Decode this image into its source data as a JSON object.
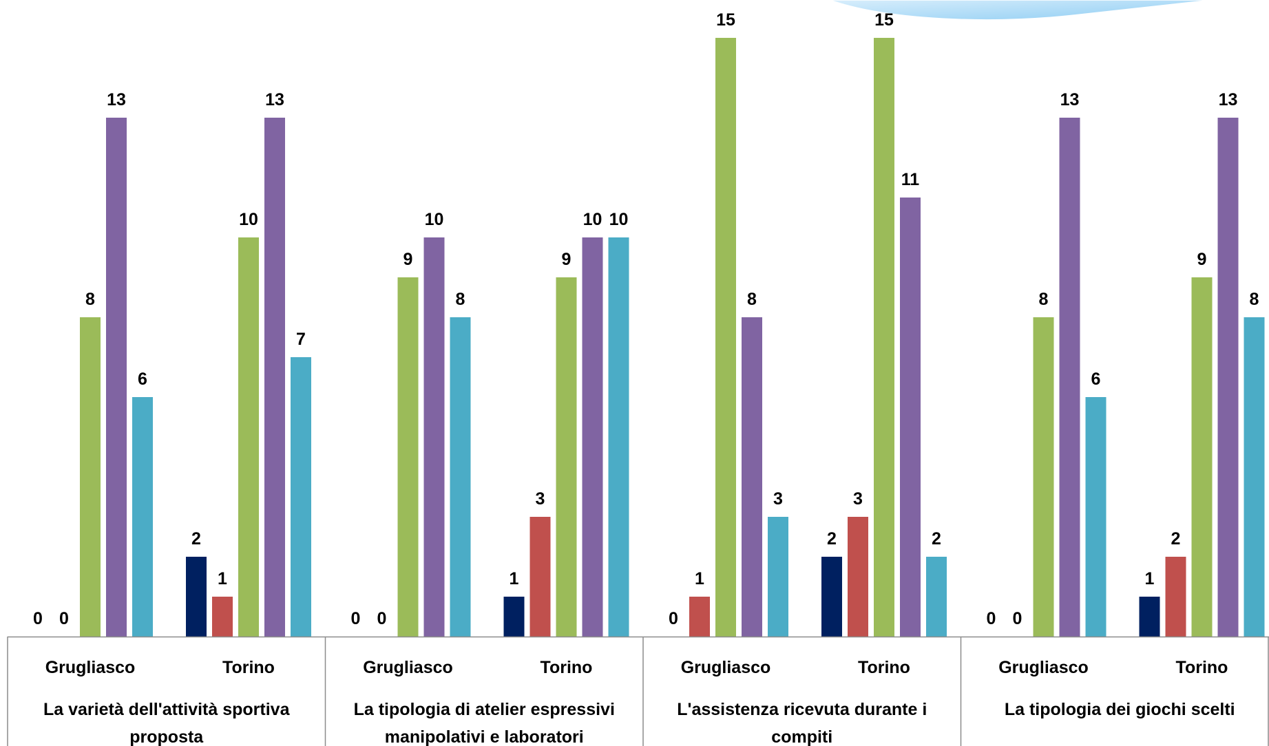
{
  "chart_data": {
    "type": "bar",
    "groups": [
      {
        "label": "La varietà dell'attività sportiva proposta",
        "label_lines": [
          "La varietà dell'attività sportiva",
          "proposta"
        ],
        "subgroups": [
          {
            "label": "Grugliasco",
            "values": [
              0,
              0,
              8,
              13,
              6
            ]
          },
          {
            "label": "Torino",
            "values": [
              2,
              1,
              10,
              13,
              7
            ]
          }
        ]
      },
      {
        "label": "La tipologia di atelier espressivi manipolativi e laboratori",
        "label_lines": [
          "La tipologia di atelier espressivi",
          "manipolativi e laboratori"
        ],
        "subgroups": [
          {
            "label": "Grugliasco",
            "values": [
              0,
              0,
              9,
              10,
              8
            ]
          },
          {
            "label": "Torino",
            "values": [
              1,
              3,
              9,
              10,
              10
            ]
          }
        ]
      },
      {
        "label": "L'assistenza ricevuta durante i compiti",
        "label_lines": [
          "L'assistenza ricevuta durante i",
          "compiti"
        ],
        "subgroups": [
          {
            "label": "Grugliasco",
            "values": [
              null,
              1,
              15,
              8,
              3
            ],
            "zero_label": "0"
          },
          {
            "label": "Torino",
            "values": [
              2,
              3,
              15,
              11,
              2
            ]
          }
        ]
      },
      {
        "label": "La tipologia dei giochi scelti",
        "label_lines": [
          "La tipologia dei giochi scelti"
        ],
        "subgroups": [
          {
            "label": "Grugliasco",
            "values": [
              0,
              0,
              8,
              13,
              6
            ]
          },
          {
            "label": "Torino",
            "values": [
              1,
              2,
              9,
              13,
              8
            ]
          }
        ]
      }
    ],
    "series_colors": [
      "#002060",
      "#C0504D",
      "#9BBB59",
      "#8064A2",
      "#4BACC6"
    ],
    "ylim": [
      0,
      15
    ],
    "grid": false,
    "legend": "none",
    "title": "",
    "xlabel": "",
    "ylabel": ""
  }
}
